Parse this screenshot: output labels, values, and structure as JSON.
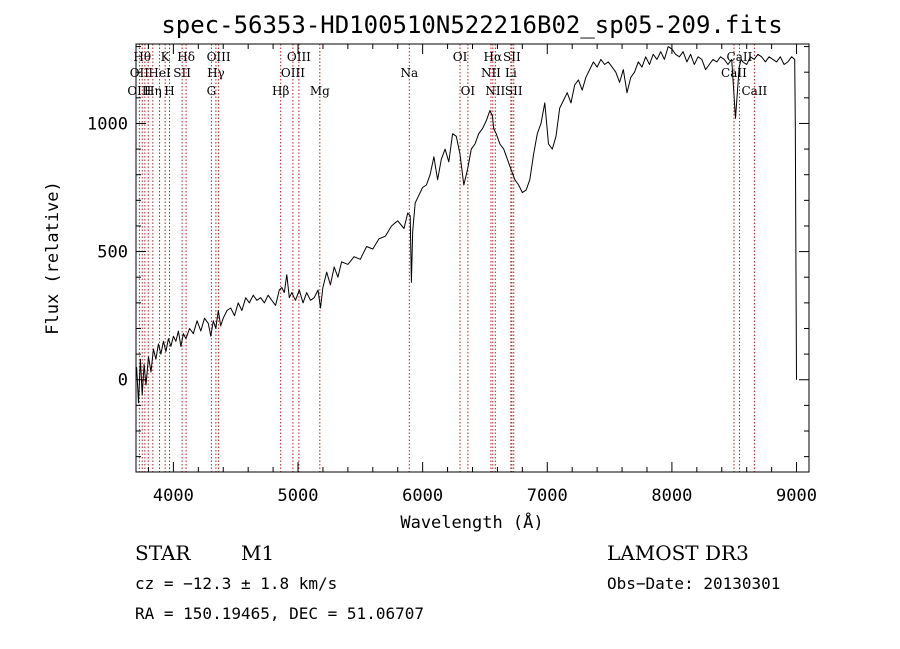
{
  "chart_data": {
    "type": "line",
    "title": "spec-56353-HD100510N522216B02_sp05-209.fits",
    "xlabel": "Wavelength (Å)",
    "ylabel": "Flux (relative)",
    "xlim": [
      3700,
      9100
    ],
    "ylim": [
      -360,
      1310
    ],
    "x_ticks": [
      4000,
      5000,
      6000,
      7000,
      8000,
      9000
    ],
    "y_ticks": [
      0,
      500,
      1000
    ],
    "grid": false,
    "series": [
      {
        "name": "flux",
        "x": [
          3705,
          3720,
          3735,
          3750,
          3765,
          3780,
          3800,
          3820,
          3840,
          3860,
          3880,
          3900,
          3920,
          3940,
          3960,
          3980,
          4000,
          4020,
          4040,
          4060,
          4080,
          4100,
          4130,
          4160,
          4190,
          4220,
          4250,
          4280,
          4300,
          4320,
          4340,
          4360,
          4380,
          4400,
          4430,
          4460,
          4490,
          4520,
          4550,
          4580,
          4610,
          4640,
          4670,
          4700,
          4730,
          4760,
          4790,
          4820,
          4850,
          4870,
          4890,
          4910,
          4930,
          4950,
          4980,
          5010,
          5040,
          5070,
          5100,
          5130,
          5160,
          5180,
          5200,
          5230,
          5260,
          5290,
          5320,
          5350,
          5400,
          5450,
          5500,
          5550,
          5600,
          5650,
          5700,
          5750,
          5800,
          5850,
          5880,
          5900,
          5910,
          5920,
          5940,
          5970,
          6000,
          6030,
          6060,
          6090,
          6120,
          6150,
          6180,
          6210,
          6240,
          6270,
          6300,
          6330,
          6360,
          6390,
          6420,
          6450,
          6480,
          6510,
          6540,
          6560,
          6570,
          6590,
          6620,
          6650,
          6680,
          6710,
          6740,
          6770,
          6800,
          6830,
          6860,
          6890,
          6920,
          6950,
          6980,
          7010,
          7040,
          7070,
          7100,
          7130,
          7160,
          7190,
          7220,
          7250,
          7280,
          7310,
          7340,
          7370,
          7400,
          7430,
          7460,
          7490,
          7520,
          7550,
          7580,
          7610,
          7640,
          7670,
          7700,
          7730,
          7760,
          7790,
          7820,
          7850,
          7880,
          7910,
          7940,
          7970,
          8000,
          8030,
          8060,
          8090,
          8120,
          8150,
          8180,
          8210,
          8240,
          8270,
          8300,
          8330,
          8360,
          8390,
          8420,
          8450,
          8480,
          8510,
          8540,
          8555,
          8570,
          8600,
          8630,
          8660,
          8690,
          8720,
          8750,
          8780,
          8810,
          8840,
          8870,
          8900,
          8930,
          8960,
          8985,
          8990,
          8995,
          9000
        ],
        "y": [
          50,
          -90,
          80,
          -60,
          60,
          -20,
          90,
          30,
          120,
          80,
          140,
          100,
          150,
          110,
          160,
          130,
          170,
          150,
          190,
          130,
          180,
          160,
          200,
          180,
          230,
          190,
          240,
          220,
          170,
          230,
          200,
          270,
          210,
          240,
          270,
          280,
          250,
          300,
          270,
          320,
          300,
          330,
          310,
          320,
          300,
          330,
          310,
          290,
          350,
          360,
          340,
          410,
          320,
          340,
          310,
          350,
          300,
          340,
          310,
          320,
          350,
          280,
          360,
          420,
          370,
          440,
          400,
          460,
          450,
          480,
          470,
          520,
          510,
          550,
          560,
          600,
          620,
          590,
          650,
          640,
          380,
          580,
          690,
          720,
          750,
          760,
          800,
          870,
          780,
          860,
          900,
          850,
          960,
          950,
          880,
          760,
          820,
          900,
          920,
          960,
          980,
          1010,
          1050,
          1030,
          980,
          960,
          920,
          900,
          860,
          820,
          780,
          760,
          730,
          740,
          780,
          880,
          960,
          1000,
          1080,
          920,
          900,
          950,
          1060,
          1090,
          1120,
          1080,
          1150,
          1170,
          1130,
          1180,
          1210,
          1240,
          1220,
          1250,
          1230,
          1240,
          1220,
          1200,
          1160,
          1210,
          1120,
          1180,
          1200,
          1240,
          1220,
          1260,
          1230,
          1270,
          1250,
          1280,
          1250,
          1300,
          1290,
          1270,
          1260,
          1280,
          1240,
          1270,
          1230,
          1260,
          1250,
          1210,
          1230,
          1250,
          1240,
          1260,
          1250,
          1230,
          1250,
          1020,
          1220,
          1250,
          1240,
          1230,
          1260,
          1250,
          1270,
          1260,
          1240,
          1260,
          1250,
          1240,
          1260,
          1230,
          1240,
          1260,
          1250,
          1000,
          480,
          0
        ]
      }
    ],
    "spectral_lines": [
      {
        "label": "Hθ",
        "x": 3750,
        "row": 1
      },
      {
        "label": "OII",
        "x": 3727,
        "row": 2
      },
      {
        "label": "OIII",
        "x": 3727,
        "row": 3
      },
      {
        "label": "Hη",
        "x": 3835,
        "row": 3
      },
      {
        "label": "HeI",
        "x": 3889,
        "row": 2
      },
      {
        "label": "K",
        "x": 3934,
        "row": 1
      },
      {
        "label": "SII",
        "x": 4070,
        "row": 2
      },
      {
        "label": "H",
        "x": 3969,
        "row": 3
      },
      {
        "label": "Hδ",
        "x": 4102,
        "row": 1
      },
      {
        "label": "OIII",
        "x": 4363,
        "row": 1
      },
      {
        "label": "Hγ",
        "x": 4341,
        "row": 2
      },
      {
        "label": "G",
        "x": 4305,
        "row": 3
      },
      {
        "label": "Hβ",
        "x": 4861,
        "row": 3
      },
      {
        "label": "OIII",
        "x": 5007,
        "row": 1
      },
      {
        "label": "OIII",
        "x": 4959,
        "row": 2
      },
      {
        "label": "Mg",
        "x": 5175,
        "row": 3
      },
      {
        "label": "Na",
        "x": 5893,
        "row": 2
      },
      {
        "label": "OI",
        "x": 6300,
        "row": 1
      },
      {
        "label": "OI",
        "x": 6363,
        "row": 3
      },
      {
        "label": "Hα",
        "x": 6563,
        "row": 1
      },
      {
        "label": "SII",
        "x": 6716,
        "row": 1
      },
      {
        "label": "NII",
        "x": 6548,
        "row": 2
      },
      {
        "label": "Li",
        "x": 6708,
        "row": 2
      },
      {
        "label": "NII",
        "x": 6583,
        "row": 3
      },
      {
        "label": "SII",
        "x": 6731,
        "row": 3
      },
      {
        "label": "CaII",
        "x": 8542,
        "row": 1
      },
      {
        "label": "CaII",
        "x": 8498,
        "row": 2
      },
      {
        "label": "CaII",
        "x": 8662,
        "row": 3
      }
    ],
    "line_markers_x": [
      3727,
      3750,
      3771,
      3798,
      3835,
      3889,
      3934,
      3969,
      4070,
      4102,
      4305,
      4341,
      4363,
      4861,
      4959,
      5007,
      5175,
      5893,
      6300,
      6363,
      6548,
      6563,
      6583,
      6708,
      6716,
      6731,
      8498,
      8542,
      8662
    ]
  },
  "info": {
    "object_class": "STAR",
    "subclass": "M1",
    "survey": "LAMOST DR3",
    "cz": "cz = −12.3 ± 1.8 km/s",
    "obs_date": "Obs−Date: 20130301",
    "coords": "RA = 150.19465, DEC =  51.06707"
  },
  "colors": {
    "spectrum": "#000000",
    "line_markers": "#b22222",
    "axes": "#000000"
  }
}
